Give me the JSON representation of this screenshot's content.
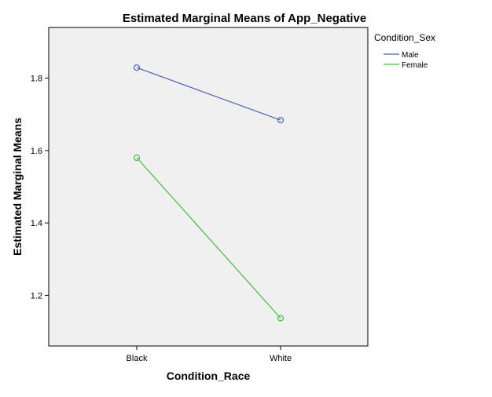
{
  "chart_data": {
    "type": "line",
    "title": "Estimated Marginal Means of App_Negative",
    "xlabel": "Condition_Race",
    "ylabel": "Estimated Marginal Means",
    "categories": [
      "Black",
      "White"
    ],
    "series": [
      {
        "name": "Male",
        "values": [
          1.829,
          1.684
        ],
        "color": "#5062b5"
      },
      {
        "name": "Female",
        "values": [
          1.58,
          1.137
        ],
        "color": "#3fbf3f"
      }
    ],
    "ylim": [
      1.06,
      1.94
    ],
    "yticks": [
      1.2,
      1.4,
      1.6,
      1.8
    ],
    "ytick_labels": [
      "1.2",
      "1.4",
      "1.6",
      "1.8"
    ],
    "legend": {
      "title": "Condition_Sex",
      "placement": "right"
    },
    "grid": false,
    "plot_background": "#f0f0f0"
  }
}
